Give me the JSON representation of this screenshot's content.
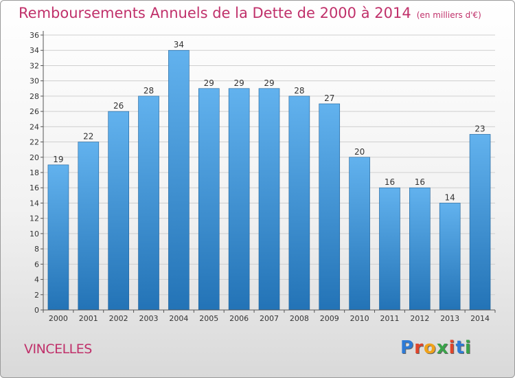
{
  "header": {
    "title": "Remboursements Annuels de la Dette de 2000 à 2014",
    "unit": "(en milliers d'€)"
  },
  "footer": {
    "commune": "VINCELLES",
    "logo": {
      "text": "Proxiti",
      "letter_colors": [
        "#2e7bd6",
        "#e0452b",
        "#f0a21a",
        "#3aa34a",
        "#e0452b",
        "#2e7bd6",
        "#3aa34a"
      ]
    }
  },
  "chart_data": {
    "type": "bar",
    "categories": [
      "2000",
      "2001",
      "2002",
      "2003",
      "2004",
      "2005",
      "2006",
      "2007",
      "2008",
      "2009",
      "2010",
      "2011",
      "2012",
      "2013",
      "2014"
    ],
    "values": [
      19,
      22,
      26,
      28,
      34,
      29,
      29,
      29,
      28,
      27,
      20,
      16,
      16,
      14,
      23
    ],
    "title": "Remboursements Annuels de la Dette de 2000 à 2014",
    "subtitle": "(en milliers d'€)",
    "xlabel": "",
    "ylabel": "",
    "ylim": [
      0,
      36
    ],
    "ytick_step": 2,
    "grid": true,
    "legend": "none",
    "colors": {
      "bar_light": "#62b2ee",
      "bar_dark": "#2373b6",
      "grid": "#cfcfcf",
      "axis": "#555555",
      "text": "#333333"
    }
  }
}
